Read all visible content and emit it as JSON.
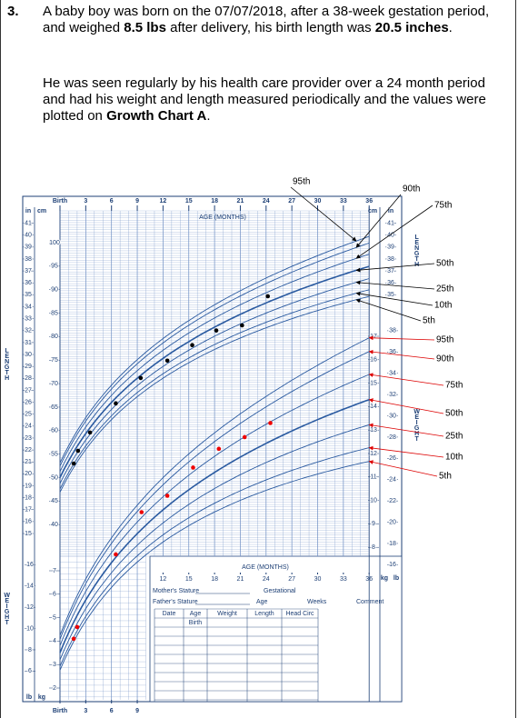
{
  "question": {
    "number": "3.",
    "p1": [
      "A baby boy was born on the 07/07/2018, after a 38-week gestation period, and weighed ",
      "8.5 lbs",
      " after delivery, his birth length was ",
      "20.5 inches",
      "."
    ],
    "p2": [
      "He was seen regularly by his health care provider over a 24 month period and had his weight and length measured periodically and the values were plotted on ",
      "Growth Chart A",
      "."
    ]
  },
  "chart": {
    "age_label": "AGE (MONTHS)",
    "age_ticks": [
      {
        "value": 0,
        "label": "Birth"
      },
      3,
      6,
      9,
      12,
      15,
      18,
      21,
      24,
      27,
      30,
      33,
      36
    ],
    "bottom_age_ticks": [
      {
        "value": 0,
        "label": "Birth"
      },
      3,
      6,
      9
    ],
    "table_age_ticks": [
      12,
      15,
      18,
      21,
      24,
      27,
      30,
      33,
      36
    ],
    "unit_in": "in",
    "unit_cm": "cm",
    "unit_kg": "kg",
    "unit_lb": "lb",
    "cm_ticks": [
      40,
      45,
      50,
      55,
      60,
      65,
      70,
      75,
      80,
      85,
      90,
      95,
      100
    ],
    "in_ticks_left": [
      15,
      16,
      17,
      18,
      19,
      20,
      21,
      22,
      23,
      24,
      25,
      26,
      27,
      28,
      29,
      30,
      31,
      32,
      33,
      34,
      35,
      36,
      37,
      38,
      39,
      40,
      41
    ],
    "in_ticks_right": [
      35,
      36,
      37,
      38,
      39,
      40,
      41
    ],
    "kg_ticks_right": [
      8,
      9,
      10,
      11,
      12,
      13,
      14,
      15,
      16,
      17
    ],
    "lb_ticks_right": [
      16,
      18,
      20,
      22,
      24,
      26,
      28,
      30,
      32,
      34,
      36,
      38
    ],
    "kg_ticks_left": [
      2,
      3,
      4,
      5,
      6,
      7
    ],
    "lb_ticks_left": [
      6,
      8,
      10,
      12,
      14,
      16
    ],
    "side_length": "LENGTH",
    "side_weight": "WEIGHT",
    "length_percentiles": [
      "95th",
      "90th",
      "75th",
      "50th",
      "25th",
      "10th",
      "5th"
    ],
    "weight_percentiles": [
      "95th",
      "90th",
      "75th",
      "50th",
      "25th",
      "10th",
      "5th"
    ],
    "length_points": {
      "x": [
        1.6,
        2.1,
        3.5,
        6.5,
        9.4,
        12.5,
        15.4,
        18.2,
        21.2,
        24.2
      ],
      "y": [
        53,
        55.7,
        59.6,
        65.8,
        71.2,
        74.9,
        78.2,
        81.3,
        82.4,
        88.6
      ]
    },
    "weight_points": {
      "x": [
        1.6,
        2,
        6.5,
        9.5,
        12.5,
        15.5,
        18.5,
        21.5,
        24.5
      ],
      "y": [
        4.1,
        4.6,
        7.7,
        9.5,
        10.2,
        11.4,
        12.2,
        12.7,
        13.3
      ]
    },
    "form": {
      "mother": "Mother's Stature",
      "father": "Father's Stature",
      "gestational": "Gestational",
      "age": "Age",
      "weeks": "Weeks",
      "comment": "Comment",
      "columns": [
        "Date",
        "Age",
        "Weight",
        "Length",
        "Head Circ"
      ],
      "birth": "Birth"
    }
  }
}
